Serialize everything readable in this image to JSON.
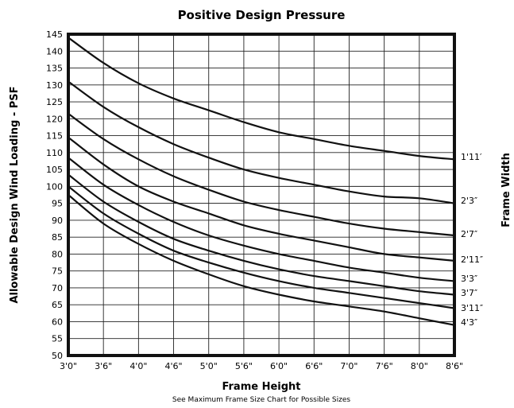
{
  "chart_data": {
    "type": "line",
    "title": "Positive Design Pressure",
    "xlabel": "Frame Height",
    "note": "See Maximum Frame Size Chart for Possible Sizes",
    "ylabel": "Allowable Design Wind Loading - PSF",
    "y2label": "Frame Width",
    "x_ticks": [
      "3'0\"",
      "3'6\"",
      "4'0\"",
      "4'6\"",
      "5'0\"",
      "5'6\"",
      "6'0\"",
      "6'6\"",
      "7'0\"",
      "7'6\"",
      "8'0\"",
      "8'6\""
    ],
    "x_range_ft": [
      3.0,
      8.5
    ],
    "ylim": [
      50,
      145
    ],
    "y_step": 5,
    "grid": true,
    "x": [
      3.0,
      3.5,
      4.0,
      4.5,
      5.0,
      5.5,
      6.0,
      6.5,
      7.0,
      7.5,
      8.0,
      8.5
    ],
    "series": [
      {
        "name": "1'11′",
        "values": [
          144,
          136.5,
          130.5,
          126,
          122.5,
          119,
          116,
          114,
          112,
          110.5,
          109,
          108
        ]
      },
      {
        "name": "2'3″",
        "values": [
          131,
          123.5,
          117.5,
          112.5,
          108.5,
          105,
          102.5,
          100.5,
          98.5,
          97,
          96.5,
          95
        ]
      },
      {
        "name": "2'7″",
        "values": [
          121.5,
          114,
          108,
          103,
          99,
          95.5,
          93,
          91,
          89,
          87.5,
          86.5,
          85.5
        ]
      },
      {
        "name": "2'11″",
        "values": [
          114.5,
          106.5,
          100,
          95.5,
          92,
          88.5,
          86,
          84,
          82,
          80,
          79,
          78
        ]
      },
      {
        "name": "3'3″",
        "values": [
          108.5,
          100.5,
          94.5,
          89.5,
          85.5,
          82.5,
          80,
          78,
          76,
          74.5,
          73,
          72
        ]
      },
      {
        "name": "3'7″",
        "values": [
          103.5,
          95.5,
          89.5,
          84.5,
          81,
          78,
          75.5,
          73.5,
          72,
          70.5,
          69,
          68
        ]
      },
      {
        "name": "3'11″",
        "values": [
          100,
          92,
          86,
          81,
          77.5,
          74.5,
          72,
          70,
          68.5,
          67,
          65.5,
          64
        ]
      },
      {
        "name": "4'3″",
        "values": [
          97.5,
          89,
          83,
          78,
          74,
          70.5,
          68,
          66,
          64.5,
          63,
          61,
          59
        ]
      }
    ]
  }
}
